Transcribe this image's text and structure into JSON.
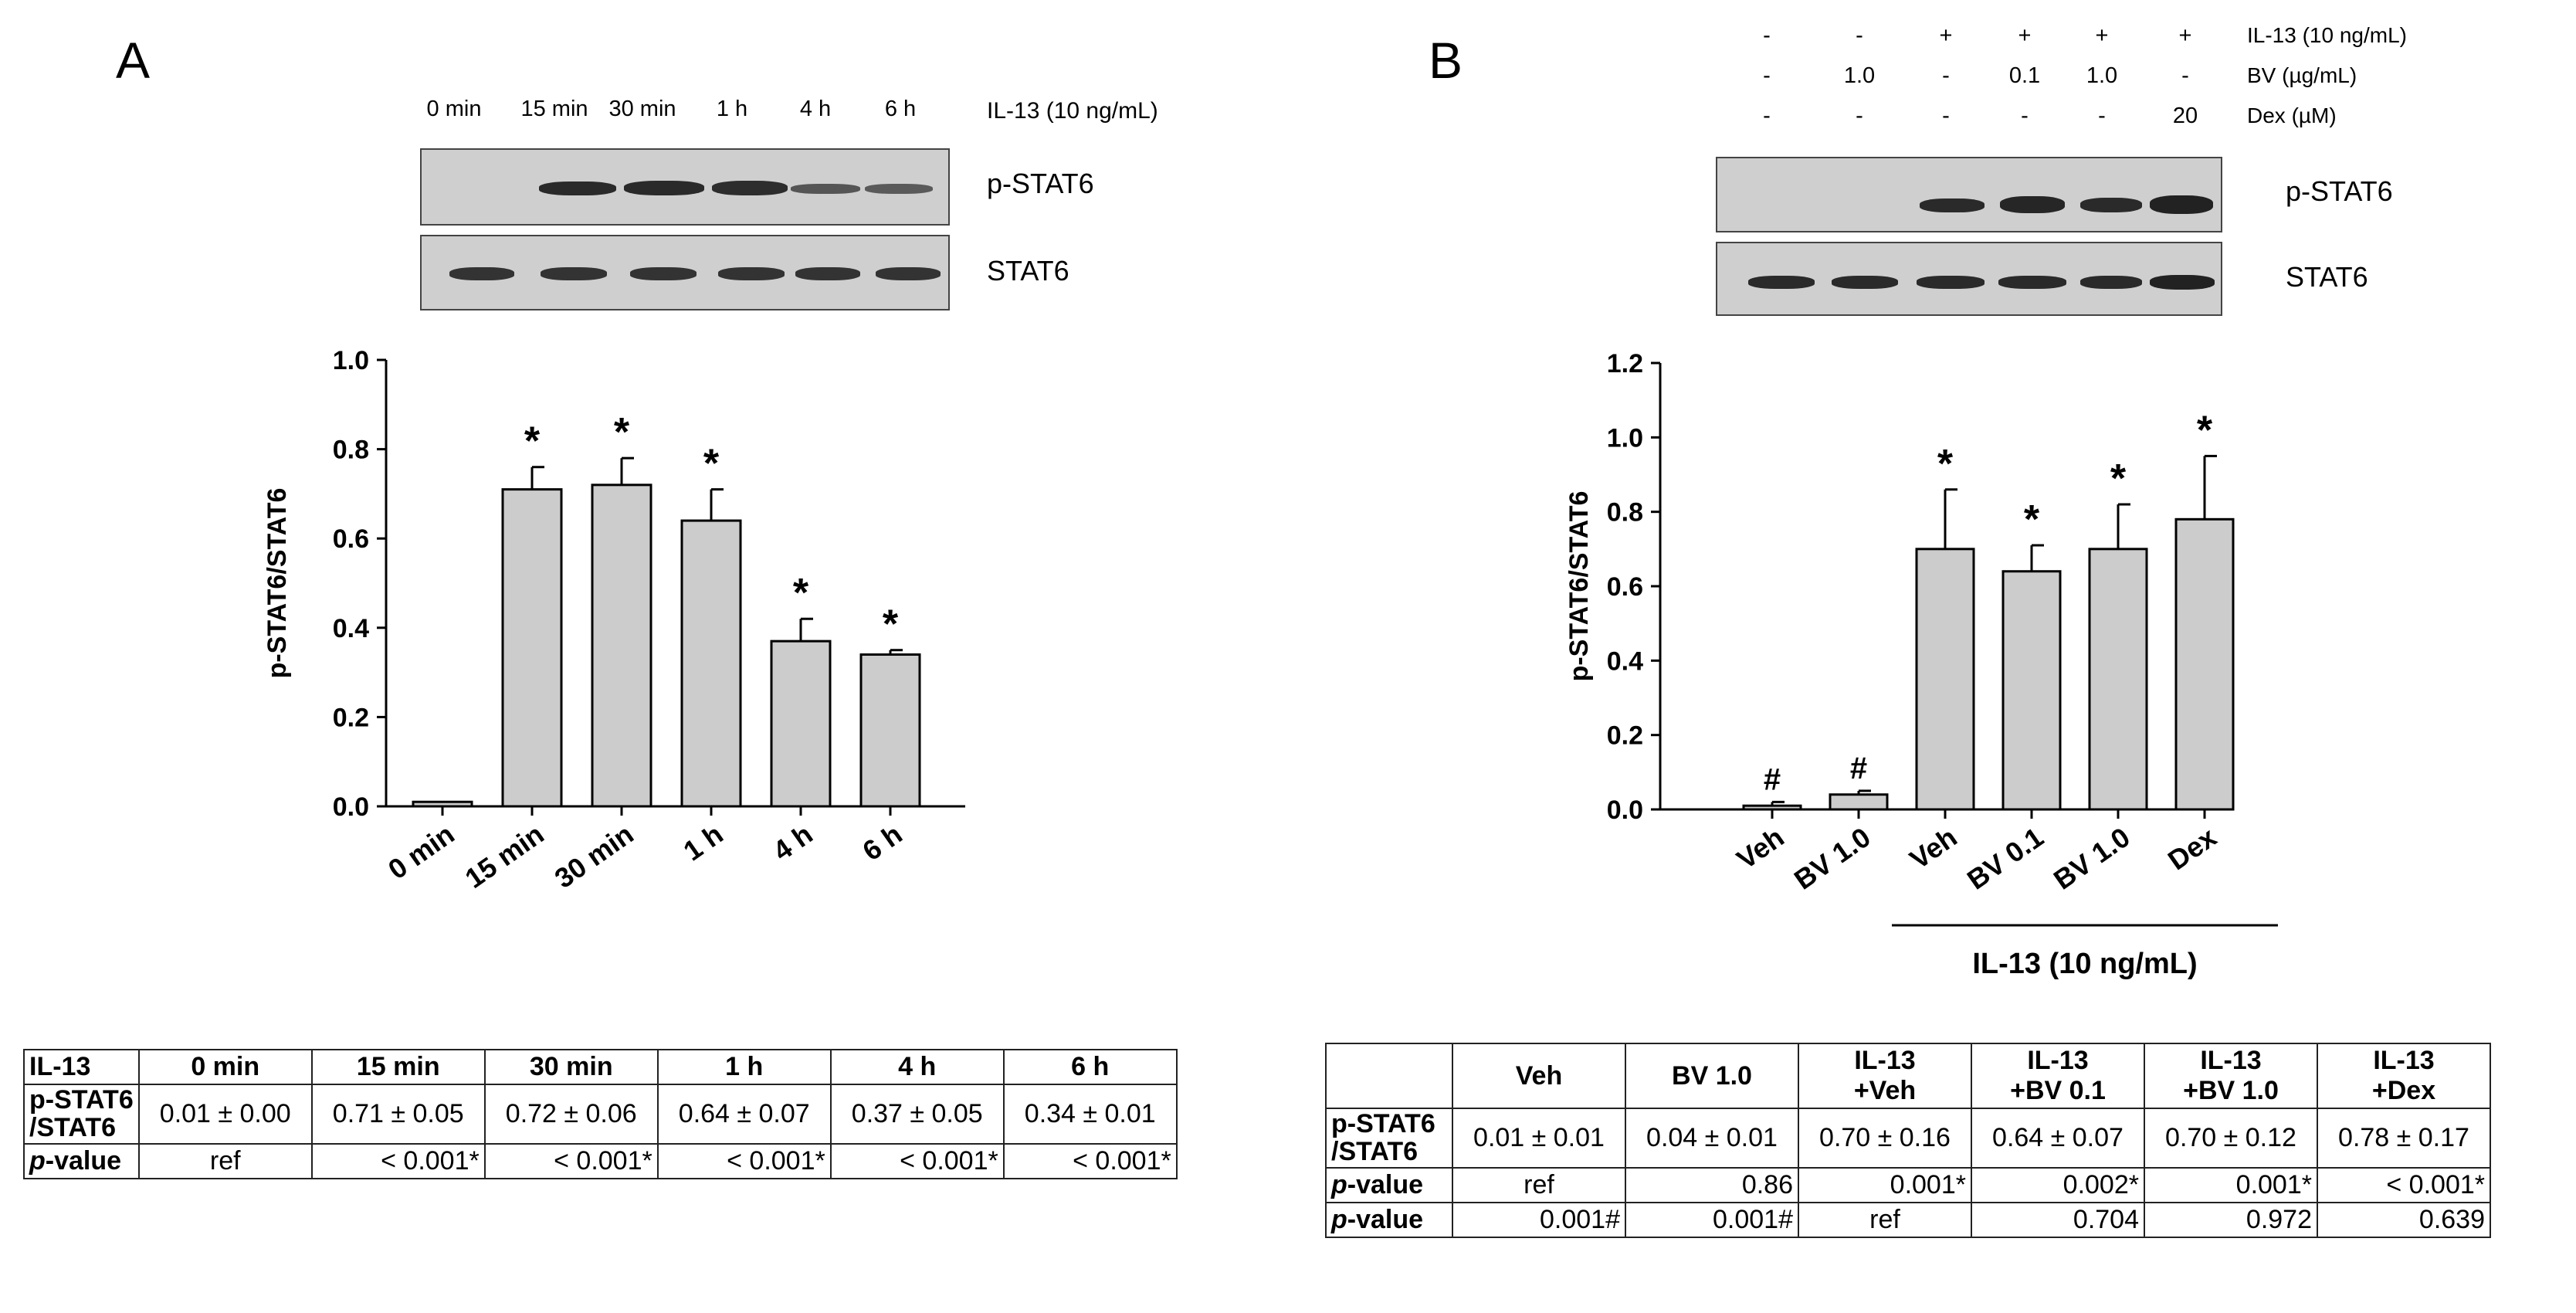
{
  "panels": {
    "a": {
      "letter": "A",
      "blot": {
        "lanes": [
          "0 min",
          "15 min",
          "30 min",
          "1 h",
          "4 h",
          "6 h"
        ],
        "treatment": "IL-13 (10 ng/mL)",
        "rows": [
          "p-STAT6",
          "STAT6"
        ]
      }
    },
    "b": {
      "letter": "B",
      "blot": {
        "conditions": [
          {
            "label": "IL-13 (10 ng/mL)",
            "values": [
              "-",
              "-",
              "+",
              "+",
              "+",
              "+"
            ]
          },
          {
            "label": "BV (µg/mL)",
            "values": [
              "-",
              "1.0",
              "-",
              "0.1",
              "1.0",
              "-"
            ]
          },
          {
            "label": "Dex (µM)",
            "values": [
              "-",
              "-",
              "-",
              "-",
              "-",
              "20"
            ]
          }
        ],
        "rows": [
          "p-STAT6",
          "STAT6"
        ]
      },
      "bracket_label": "IL-13 (10 ng/mL)"
    }
  },
  "chart_data": [
    {
      "type": "bar",
      "panel": "A",
      "categories": [
        "0 min",
        "15 min",
        "30 min",
        "1 h",
        "4 h",
        "6 h"
      ],
      "values": [
        0.01,
        0.71,
        0.72,
        0.64,
        0.37,
        0.34
      ],
      "errors": [
        0.0,
        0.05,
        0.06,
        0.07,
        0.05,
        0.01
      ],
      "markers": [
        "",
        "*",
        "*",
        "*",
        "*",
        "*"
      ],
      "ylabel": "p-STAT6/STAT6",
      "ylim": [
        0,
        1.0
      ],
      "yticks": [
        "0.0",
        "0.2",
        "0.4",
        "0.6",
        "0.8",
        "1.0"
      ],
      "bar_color": "#cccccc"
    },
    {
      "type": "bar",
      "panel": "B",
      "categories": [
        "Veh",
        "BV 1.0",
        "Veh",
        "BV 0.1",
        "BV 1.0",
        "Dex"
      ],
      "values": [
        0.01,
        0.04,
        0.7,
        0.64,
        0.7,
        0.78
      ],
      "errors": [
        0.01,
        0.01,
        0.16,
        0.07,
        0.12,
        0.17
      ],
      "markers": [
        "#",
        "#",
        "*",
        "*",
        "*",
        "*"
      ],
      "ylabel": "p-STAT6/STAT6",
      "ylim": [
        0,
        1.2
      ],
      "yticks": [
        "0.0",
        "0.2",
        "0.4",
        "0.6",
        "0.8",
        "1.0",
        "1.2"
      ],
      "bar_color": "#cccccc"
    }
  ],
  "tables": {
    "a": {
      "header": [
        "IL-13",
        "0 min",
        "15 min",
        "30 min",
        "1 h",
        "4 h",
        "6 h"
      ],
      "row1_label": [
        "p-STAT6",
        "/STAT6"
      ],
      "row1": [
        "0.01 ± 0.00",
        "0.71 ± 0.05",
        "0.72 ± 0.06",
        "0.64 ± 0.07",
        "0.37 ± 0.05",
        "0.34 ± 0.01"
      ],
      "row2_label_italic": "p",
      "row2_label_rest": "-value",
      "row2": [
        "ref",
        "< 0.001*",
        "< 0.001*",
        "< 0.001*",
        "< 0.001*",
        "< 0.001*"
      ]
    },
    "b": {
      "header": [
        [
          "Veh"
        ],
        [
          "BV 1.0"
        ],
        [
          "IL-13",
          "+Veh"
        ],
        [
          "IL-13",
          "+BV 0.1"
        ],
        [
          "IL-13",
          "+BV 1.0"
        ],
        [
          "IL-13",
          "+Dex"
        ]
      ],
      "row1_label": [
        "p-STAT6",
        "/STAT6"
      ],
      "row1": [
        "0.01 ± 0.01",
        "0.04 ± 0.01",
        "0.70 ± 0.16",
        "0.64 ± 0.07",
        "0.70 ± 0.12",
        "0.78 ± 0.17"
      ],
      "row2_label_italic": "p",
      "row2_label_rest": "-value",
      "row2": [
        "ref",
        "0.86",
        "0.001*",
        "0.002*",
        "0.001*",
        "< 0.001*"
      ],
      "row3": [
        "0.001#",
        "0.001#",
        "ref",
        "0.704",
        "0.972",
        "0.639"
      ]
    }
  }
}
